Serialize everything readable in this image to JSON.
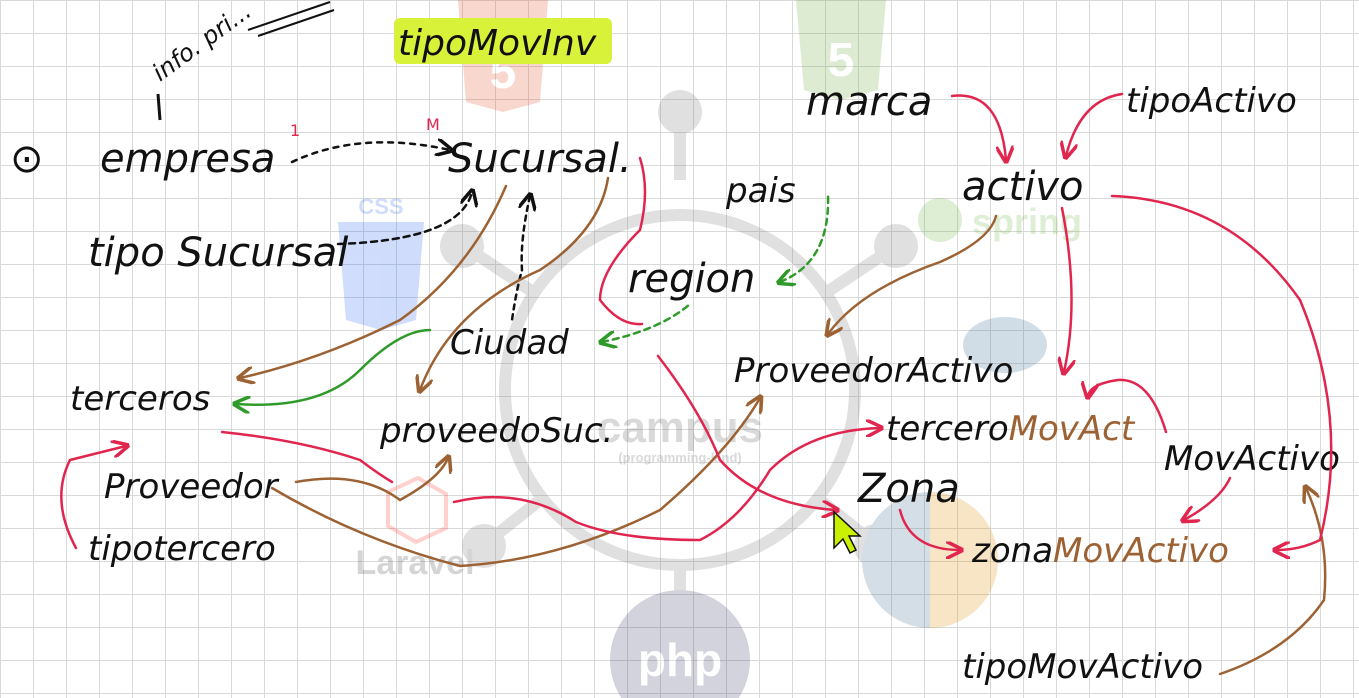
{
  "watermarks": {
    "css": "CSS",
    "spring": "spring",
    "campus": "campus",
    "campus_sub": "(programming-land)",
    "laravel": "Laravel",
    "php": "php"
  },
  "notes": {
    "top_note": "info. pri...",
    "highlight": "tipoMovInv",
    "bullet": "⊙"
  },
  "cardinality": {
    "one": "1",
    "many": "M"
  },
  "entities": {
    "empresa": "empresa",
    "sucursal": "Sucursal.",
    "tipoSucursal": "tipo Sucursal",
    "pais": "pais",
    "region": "region",
    "ciudad": "Ciudad",
    "terceros": "terceros",
    "proveedoSuc": "proveedoSuc.",
    "proveedor": "Proveedor",
    "tipotercero": "tipotercero",
    "marca": "marca",
    "tipoActivo": "tipoActivo",
    "activo": "activo",
    "proveedorActivo": "ProveedorActivo",
    "tercero": "tercero",
    "movAct": "MovAct",
    "movActivo": "MovActivo",
    "zona": "Zona",
    "zonaMov_a": "zona",
    "zonaMov_b": "MovActivo",
    "tipoMovActivo": "tipoMovActivo"
  },
  "colors": {
    "ink": "#111111",
    "red": "#e0264e",
    "brown": "#9c6234",
    "green": "#2f9a2a",
    "highlight": "#d8f23a",
    "cursor": "#c8f000"
  }
}
